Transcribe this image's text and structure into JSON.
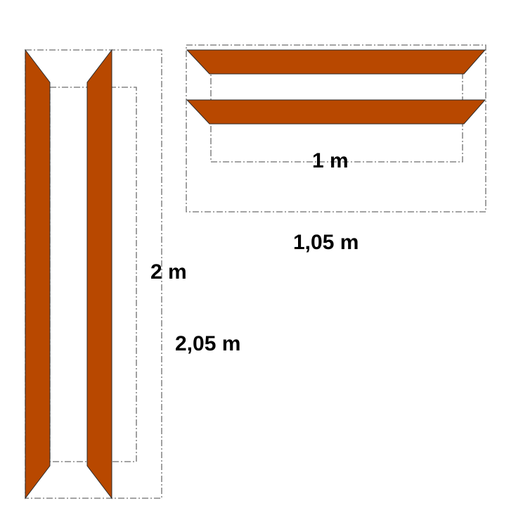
{
  "labels": {
    "vertical_inner": "2 m",
    "vertical_outer": "2,05 m",
    "horizontal_inner": "1 m",
    "horizontal_outer": "1,05 m"
  },
  "colors": {
    "frame_wood": "#b84800",
    "outline": "#2b2b2b",
    "dimension_line": "#6e6e6e",
    "background": "#ffffff"
  }
}
